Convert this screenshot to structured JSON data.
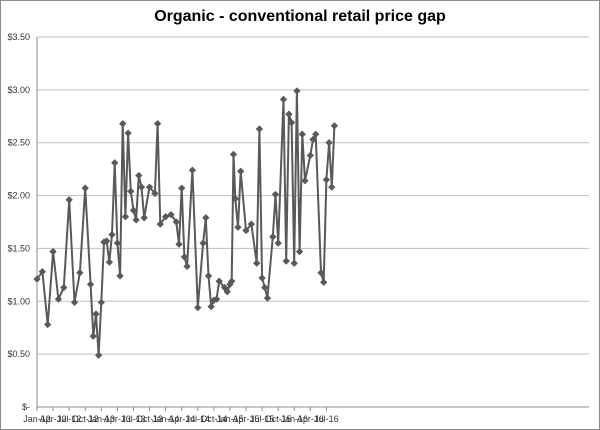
{
  "chart_data": {
    "type": "line",
    "title": "Organic - conventional  retail price gap",
    "xlabel": "",
    "ylabel": "",
    "ylim": [
      0,
      3.5
    ],
    "y_ticks": [
      "$-",
      "$0.50",
      "$1.00",
      "$1.50",
      "$2.00",
      "$2.50",
      "$3.00",
      "$3.50"
    ],
    "x_ticks": [
      "Jan-12",
      "Apr-12",
      "Jul-12",
      "Oct-12",
      "Jan-13",
      "Apr-13",
      "Jul-13",
      "Oct-13",
      "Jan-14",
      "Apr-14",
      "Jul-14",
      "Oct-14",
      "Jan-15",
      "Apr-15",
      "Jul-15",
      "Oct-15",
      "Jan-16",
      "Apr-16",
      "Jul-16"
    ],
    "grid": true,
    "legend": "none",
    "line_color": "#595959",
    "marker": "diamond",
    "series": [
      {
        "points": [
          [
            "2012-01",
            1.21
          ],
          [
            "2012-02",
            1.28
          ],
          [
            "2012-03",
            0.78
          ],
          [
            "2012-04",
            1.47
          ],
          [
            "2012-05",
            1.02
          ],
          [
            "2012-06",
            1.13
          ],
          [
            "2012-07",
            1.96
          ],
          [
            "2012-08",
            0.99
          ],
          [
            "2012-09",
            1.27
          ],
          [
            "2012-10",
            2.07
          ],
          [
            "2012-11",
            1.16
          ],
          [
            "2012-11",
            0.67
          ],
          [
            "2012-12",
            0.88
          ],
          [
            "2012-12",
            0.49
          ],
          [
            "2013-01",
            0.99
          ],
          [
            "2013-01",
            1.56
          ],
          [
            "2013-02",
            1.57
          ],
          [
            "2013-02",
            1.37
          ],
          [
            "2013-03",
            1.63
          ],
          [
            "2013-03",
            2.31
          ],
          [
            "2013-04",
            1.55
          ],
          [
            "2013-04",
            1.24
          ],
          [
            "2013-05",
            2.68
          ],
          [
            "2013-05",
            1.8
          ],
          [
            "2013-06",
            2.59
          ],
          [
            "2013-06",
            2.04
          ],
          [
            "2013-07",
            1.86
          ],
          [
            "2013-07",
            1.77
          ],
          [
            "2013-08",
            2.19
          ],
          [
            "2013-08",
            2.08
          ],
          [
            "2013-09",
            1.79
          ],
          [
            "2013-10",
            2.08
          ],
          [
            "2013-11",
            2.02
          ],
          [
            "2013-11",
            2.68
          ],
          [
            "2013-12",
            1.73
          ],
          [
            "2014-01",
            1.8
          ],
          [
            "2014-02",
            1.82
          ],
          [
            "2014-03",
            1.75
          ],
          [
            "2014-03",
            1.54
          ],
          [
            "2014-04",
            2.07
          ],
          [
            "2014-04",
            1.42
          ],
          [
            "2014-05",
            1.33
          ],
          [
            "2014-06",
            2.24
          ],
          [
            "2014-07",
            0.94
          ],
          [
            "2014-08",
            1.55
          ],
          [
            "2014-08",
            1.79
          ],
          [
            "2014-09",
            1.24
          ],
          [
            "2014-09",
            0.95
          ],
          [
            "2014-10",
            1.01
          ],
          [
            "2014-10",
            1.02
          ],
          [
            "2014-11",
            1.19
          ],
          [
            "2014-12",
            1.13
          ],
          [
            "2014-12",
            1.09
          ],
          [
            "2015-01",
            1.16
          ],
          [
            "2015-01",
            1.19
          ],
          [
            "2015-01",
            2.39
          ],
          [
            "2015-02",
            1.97
          ],
          [
            "2015-02",
            1.7
          ],
          [
            "2015-03",
            2.23
          ],
          [
            "2015-04",
            1.67
          ],
          [
            "2015-05",
            1.73
          ],
          [
            "2015-06",
            1.36
          ],
          [
            "2015-06",
            2.63
          ],
          [
            "2015-07",
            1.22
          ],
          [
            "2015-07",
            1.13
          ],
          [
            "2015-08",
            1.03
          ],
          [
            "2015-09",
            1.61
          ],
          [
            "2015-09",
            2.01
          ],
          [
            "2015-10",
            1.55
          ],
          [
            "2015-11",
            2.91
          ],
          [
            "2015-11",
            1.38
          ],
          [
            "2015-12",
            2.77
          ],
          [
            "2015-12",
            2.69
          ],
          [
            "2016-01",
            1.36
          ],
          [
            "2016-01",
            2.99
          ],
          [
            "2016-02",
            1.47
          ],
          [
            "2016-02",
            2.58
          ],
          [
            "2016-03",
            2.14
          ],
          [
            "2016-04",
            2.38
          ],
          [
            "2016-04",
            2.53
          ],
          [
            "2016-05",
            2.58
          ],
          [
            "2016-06",
            1.27
          ],
          [
            "2016-06",
            1.18
          ],
          [
            "2016-07",
            2.15
          ],
          [
            "2016-07",
            2.5
          ],
          [
            "2016-08",
            2.08
          ],
          [
            "2016-08",
            2.66
          ]
        ]
      }
    ]
  }
}
